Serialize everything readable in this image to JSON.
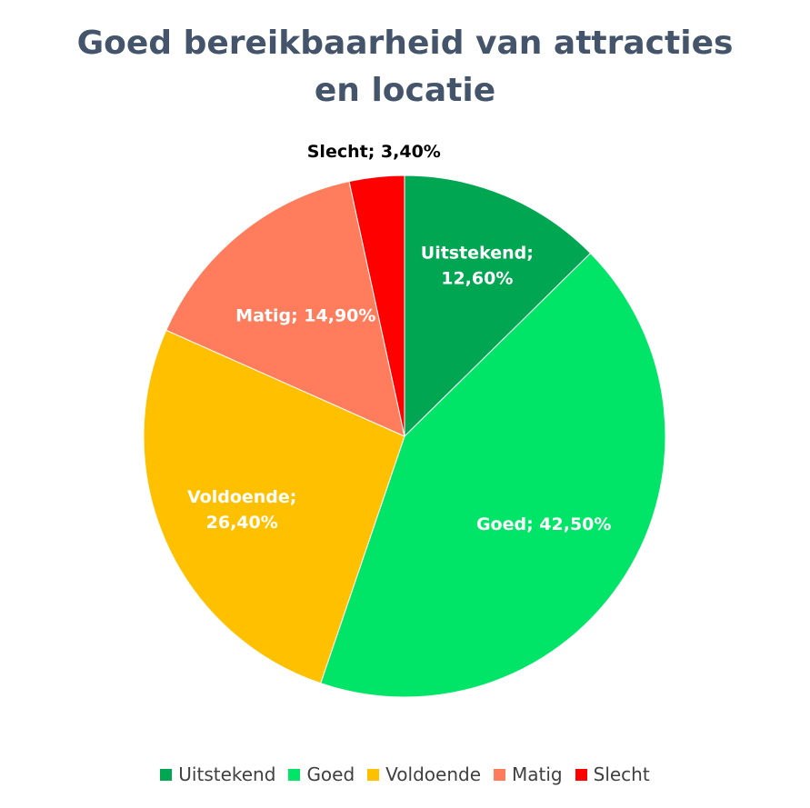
{
  "chart_data": {
    "type": "pie",
    "title_lines": [
      "Goed bereikbaarheid van attracties",
      "en locatie"
    ],
    "slices": [
      {
        "name": "Uitstekend",
        "value": 12.6,
        "label_name": "Uitstekend;",
        "label_value": "12,60%",
        "color": "#00a651",
        "label_color": "#ffffff"
      },
      {
        "name": "Goed",
        "value": 42.5,
        "label_name": "Goed;",
        "label_value": "42,50%",
        "color": "#00e567",
        "label_color": "#ffffff"
      },
      {
        "name": "Voldoende",
        "value": 26.4,
        "label_name": "Voldoende;",
        "label_value": "26,40%",
        "color": "#ffc000",
        "label_color": "#ffffff"
      },
      {
        "name": "Matig",
        "value": 14.9,
        "label_name": "Matig;",
        "label_value": "14,90%",
        "color": "#ff7c5c",
        "label_color": "#ffffff"
      },
      {
        "name": "Slecht",
        "value": 3.4,
        "label_name": "Slecht;",
        "label_value": "3,40%",
        "color": "#ff0000",
        "label_color": "#000000"
      }
    ],
    "legend_position": "bottom"
  }
}
